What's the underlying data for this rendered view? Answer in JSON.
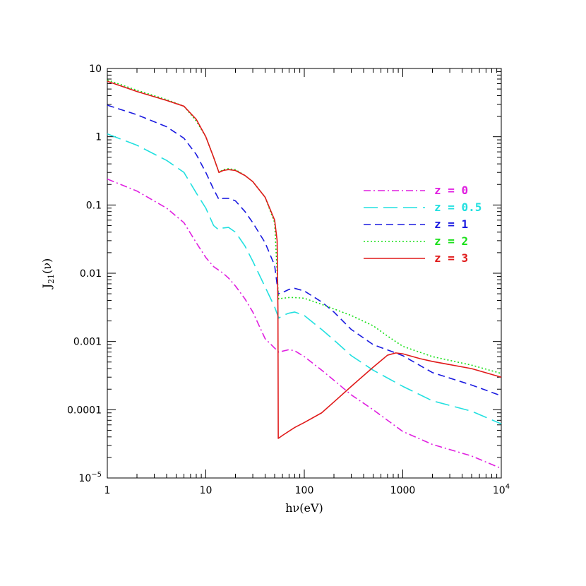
{
  "chart_data": {
    "type": "line",
    "xscale": "log",
    "yscale": "log",
    "xlim": [
      1,
      10000
    ],
    "ylim": [
      1e-05,
      10
    ],
    "xlabel": "hν(eV)",
    "ylabel": {
      "base": "J",
      "sub": "21",
      "rest": "(ν)"
    },
    "x_ticks": [
      {
        "value": 1,
        "label": "1"
      },
      {
        "value": 10,
        "label": "10"
      },
      {
        "value": 100,
        "label": "100"
      },
      {
        "value": 1000,
        "label": "1000"
      },
      {
        "value": 10000,
        "label": "10",
        "sup": "4"
      }
    ],
    "y_ticks": [
      {
        "value": 10,
        "label": "10"
      },
      {
        "value": 1,
        "label": "1"
      },
      {
        "value": 0.1,
        "label": "0.1"
      },
      {
        "value": 0.01,
        "label": "0.01"
      },
      {
        "value": 0.001,
        "label": "0.001"
      },
      {
        "value": 0.0001,
        "label": "0.0001"
      },
      {
        "value": 1e-05,
        "label": "10",
        "sup": "−5"
      }
    ],
    "legend_position": "right",
    "series": [
      {
        "name": "z = 0",
        "color": "#e020e0",
        "dash": "dash-dot",
        "points": [
          [
            1,
            0.24
          ],
          [
            2,
            0.16
          ],
          [
            4,
            0.09
          ],
          [
            6,
            0.055
          ],
          [
            8,
            0.028
          ],
          [
            10,
            0.017
          ],
          [
            12,
            0.0125
          ],
          [
            15,
            0.01
          ],
          [
            17,
            0.0085
          ],
          [
            20,
            0.0065
          ],
          [
            25,
            0.0042
          ],
          [
            30,
            0.0027
          ],
          [
            40,
            0.0011
          ],
          [
            50,
            0.0008
          ],
          [
            55,
            0.0007
          ],
          [
            60,
            0.00072
          ],
          [
            70,
            0.00076
          ],
          [
            80,
            0.00073
          ],
          [
            100,
            0.0006
          ],
          [
            150,
            0.00038
          ],
          [
            200,
            0.00027
          ],
          [
            300,
            0.000165
          ],
          [
            500,
            0.0001
          ],
          [
            1000,
            4.8e-05
          ],
          [
            2000,
            3.1e-05
          ],
          [
            5000,
            2.1e-05
          ],
          [
            10000,
            1.38e-05
          ]
        ]
      },
      {
        "name": "z = 0.5",
        "color": "#22e0e0",
        "dash": "long-dash",
        "points": [
          [
            1,
            1.1
          ],
          [
            2,
            0.75
          ],
          [
            4,
            0.45
          ],
          [
            6,
            0.3
          ],
          [
            8,
            0.15
          ],
          [
            10,
            0.09
          ],
          [
            12,
            0.05
          ],
          [
            13.6,
            0.043
          ],
          [
            15,
            0.046
          ],
          [
            17,
            0.047
          ],
          [
            20,
            0.04
          ],
          [
            25,
            0.025
          ],
          [
            30,
            0.015
          ],
          [
            40,
            0.0063
          ],
          [
            50,
            0.0032
          ],
          [
            55,
            0.0022
          ],
          [
            60,
            0.0024
          ],
          [
            70,
            0.0026
          ],
          [
            80,
            0.0027
          ],
          [
            100,
            0.0024
          ],
          [
            150,
            0.0015
          ],
          [
            200,
            0.00105
          ],
          [
            300,
            0.00062
          ],
          [
            500,
            0.00038
          ],
          [
            1000,
            0.00022
          ],
          [
            2000,
            0.000135
          ],
          [
            5000,
            9.5e-05
          ],
          [
            10000,
            6.2e-05
          ]
        ]
      },
      {
        "name": "z = 1",
        "color": "#1a1ae0",
        "dash": "dash",
        "points": [
          [
            1,
            2.9
          ],
          [
            2,
            2.1
          ],
          [
            4,
            1.4
          ],
          [
            6,
            0.95
          ],
          [
            8,
            0.55
          ],
          [
            10,
            0.3
          ],
          [
            12,
            0.17
          ],
          [
            13.6,
            0.12
          ],
          [
            15,
            0.125
          ],
          [
            17,
            0.125
          ],
          [
            20,
            0.115
          ],
          [
            25,
            0.08
          ],
          [
            30,
            0.055
          ],
          [
            40,
            0.028
          ],
          [
            50,
            0.013
          ],
          [
            54.4,
            0.005
          ],
          [
            60,
            0.0052
          ],
          [
            70,
            0.0058
          ],
          [
            80,
            0.006
          ],
          [
            100,
            0.0055
          ],
          [
            150,
            0.0038
          ],
          [
            200,
            0.0027
          ],
          [
            300,
            0.0015
          ],
          [
            500,
            0.0009
          ],
          [
            1000,
            0.00062
          ],
          [
            2000,
            0.00035
          ],
          [
            5000,
            0.00023
          ],
          [
            10000,
            0.00016
          ]
        ]
      },
      {
        "name": "z = 2",
        "color": "#1ae01a",
        "dash": "dot",
        "points": [
          [
            1,
            6.8
          ],
          [
            2,
            4.8
          ],
          [
            4,
            3.5
          ],
          [
            6,
            2.8
          ],
          [
            8,
            1.7
          ],
          [
            10,
            1.0
          ],
          [
            12,
            0.5
          ],
          [
            13.6,
            0.3
          ],
          [
            15,
            0.33
          ],
          [
            17,
            0.34
          ],
          [
            20,
            0.33
          ],
          [
            25,
            0.27
          ],
          [
            30,
            0.22
          ],
          [
            40,
            0.13
          ],
          [
            50,
            0.055
          ],
          [
            54,
            0.006
          ],
          [
            55,
            0.0042
          ],
          [
            60,
            0.0043
          ],
          [
            70,
            0.0044
          ],
          [
            80,
            0.0044
          ],
          [
            100,
            0.0043
          ],
          [
            150,
            0.0035
          ],
          [
            200,
            0.003
          ],
          [
            300,
            0.0024
          ],
          [
            500,
            0.0017
          ],
          [
            700,
            0.0012
          ],
          [
            1000,
            0.00085
          ],
          [
            2000,
            0.0006
          ],
          [
            5000,
            0.00045
          ],
          [
            10000,
            0.00034
          ]
        ]
      },
      {
        "name": "z = 3",
        "color": "#e01a1a",
        "dash": "solid",
        "points": [
          [
            1,
            6.5
          ],
          [
            2,
            4.6
          ],
          [
            4,
            3.4
          ],
          [
            6,
            2.8
          ],
          [
            8,
            1.8
          ],
          [
            10,
            1.0
          ],
          [
            12,
            0.5
          ],
          [
            13.6,
            0.3
          ],
          [
            15,
            0.32
          ],
          [
            17,
            0.33
          ],
          [
            20,
            0.32
          ],
          [
            25,
            0.27
          ],
          [
            30,
            0.22
          ],
          [
            40,
            0.13
          ],
          [
            50,
            0.06
          ],
          [
            53,
            0.03
          ],
          [
            54,
            0.003
          ],
          [
            54.4,
            3.8e-05
          ],
          [
            60,
            4.2e-05
          ],
          [
            80,
            5.5e-05
          ],
          [
            100,
            6.5e-05
          ],
          [
            150,
            9e-05
          ],
          [
            200,
            0.00013
          ],
          [
            300,
            0.00022
          ],
          [
            500,
            0.00042
          ],
          [
            700,
            0.00063
          ],
          [
            850,
            0.00068
          ],
          [
            1000,
            0.00066
          ],
          [
            1500,
            0.00056
          ],
          [
            2000,
            0.00051
          ],
          [
            5000,
            0.0004
          ],
          [
            10000,
            0.0003
          ]
        ]
      }
    ]
  }
}
